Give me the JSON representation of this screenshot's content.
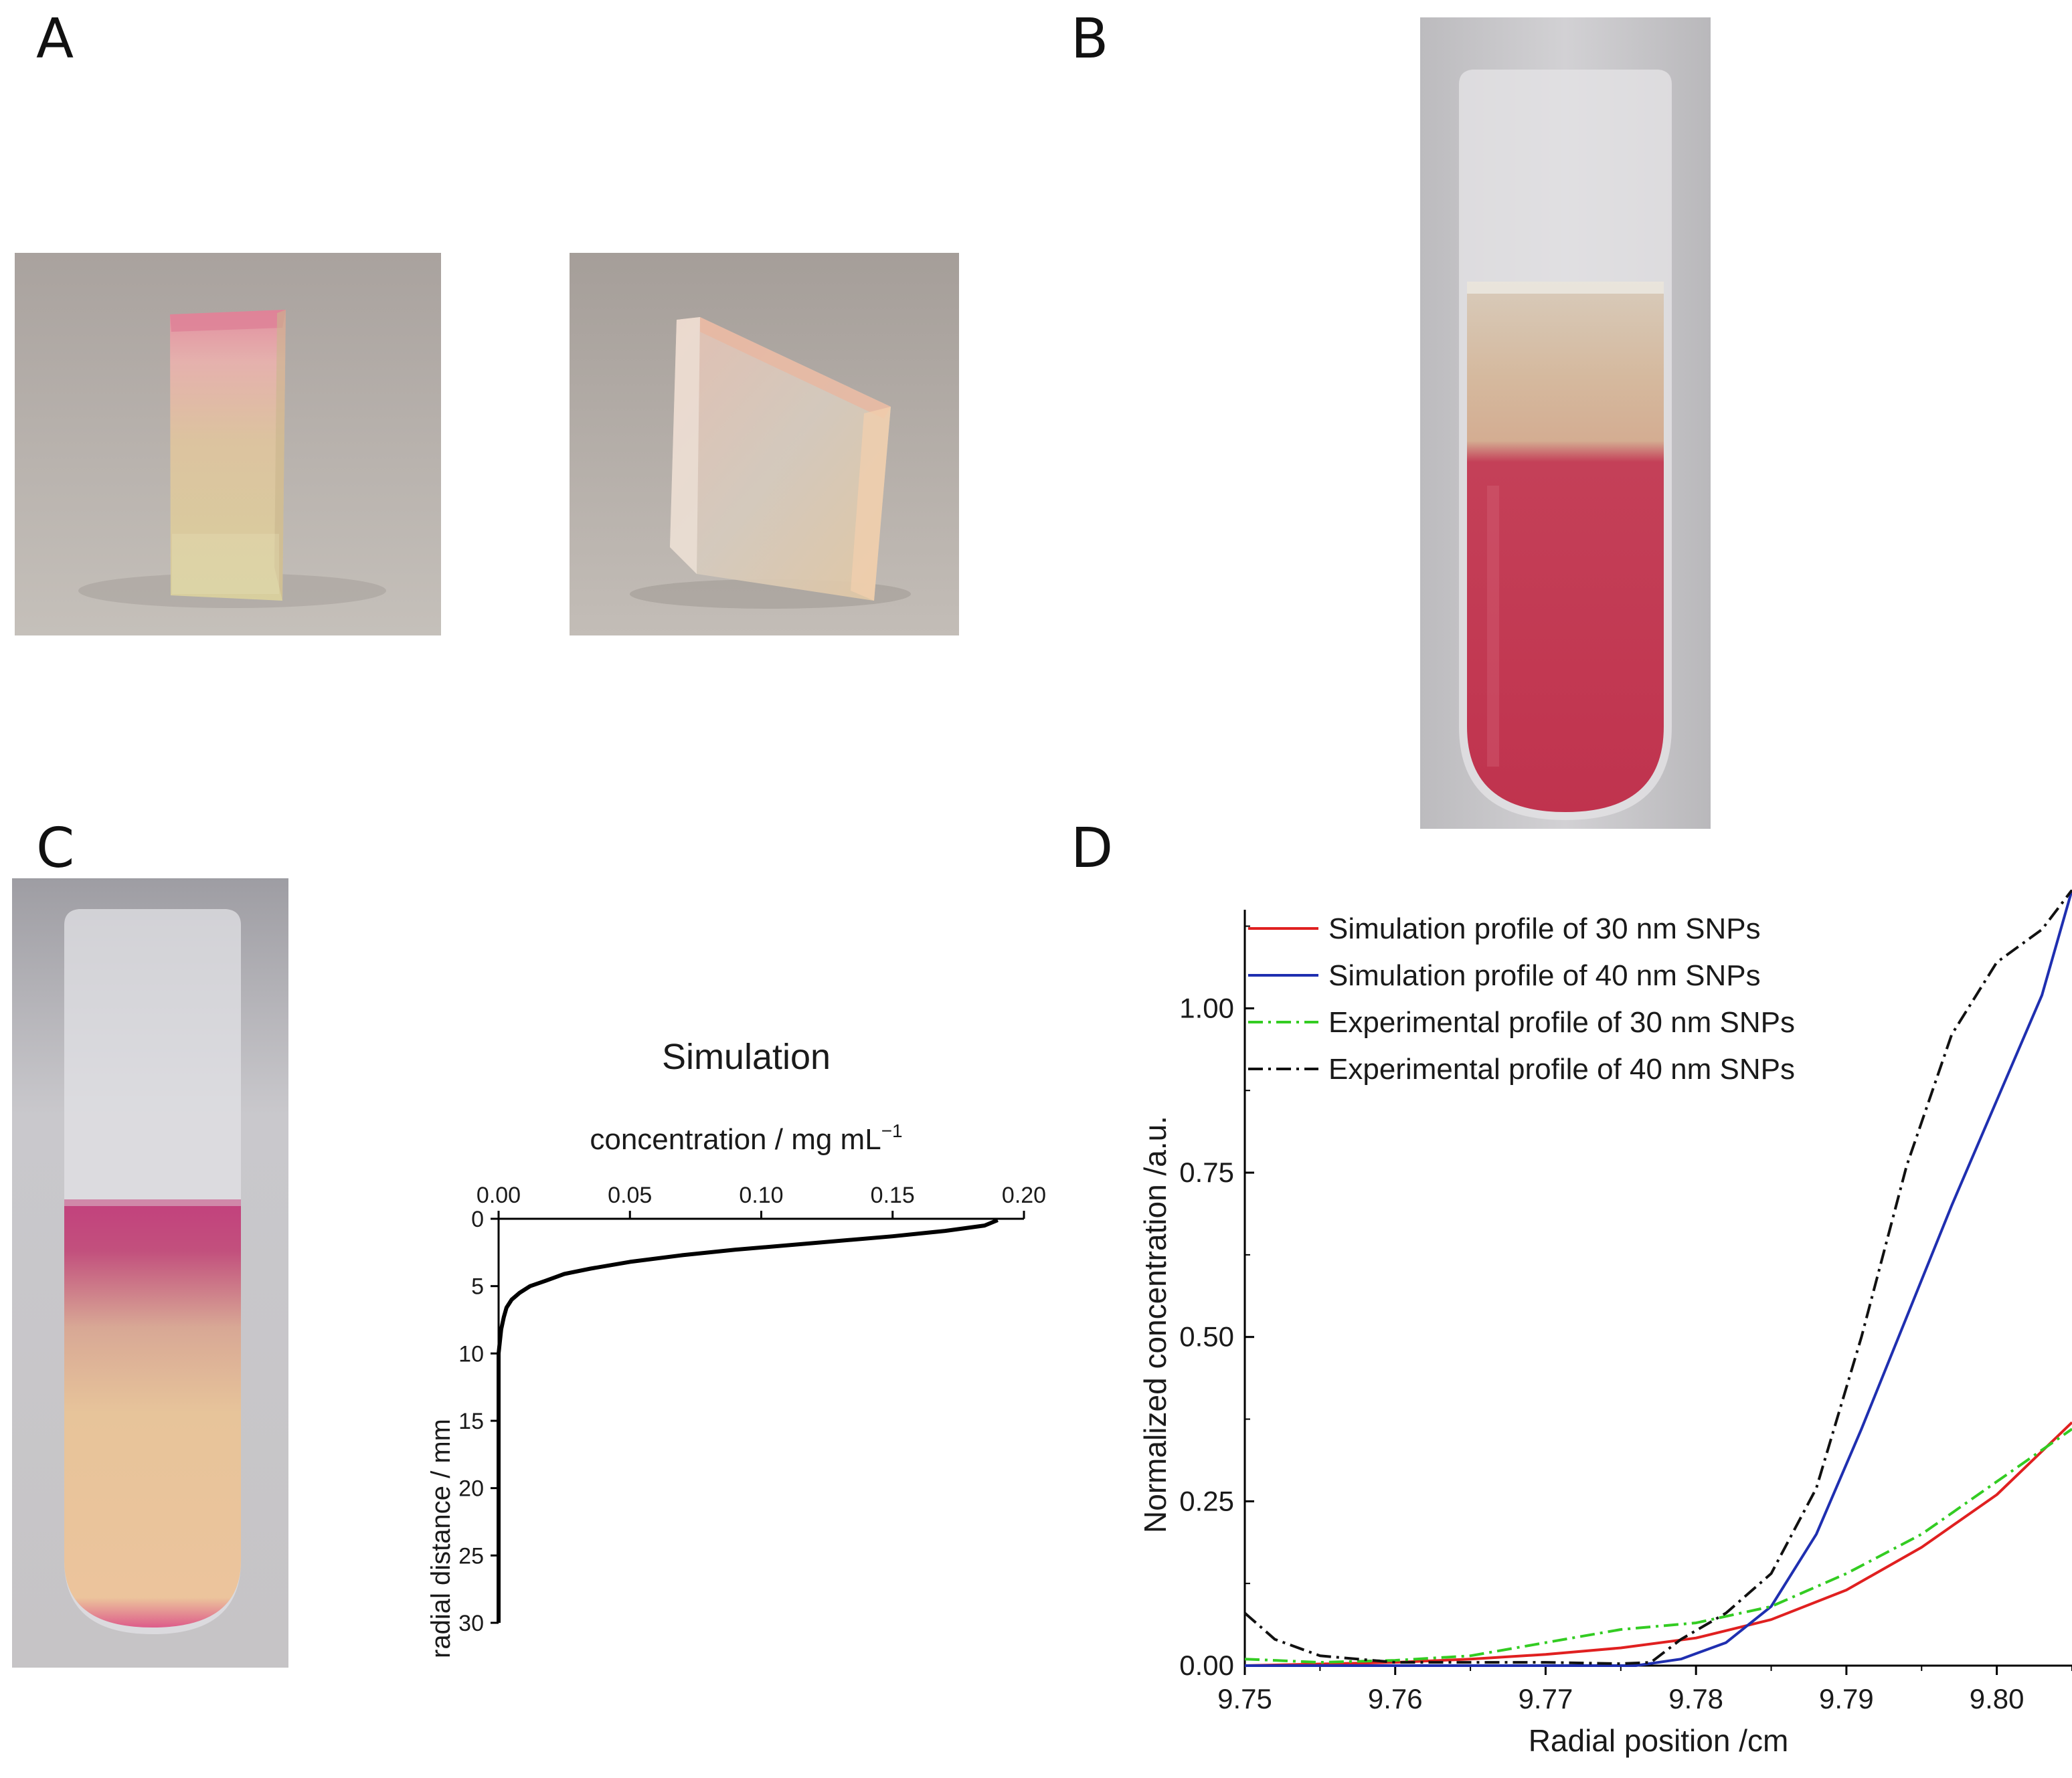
{
  "panels": {
    "a": {
      "letter": "A"
    },
    "b": {
      "letter": "B"
    },
    "c": {
      "letter": "C"
    },
    "d": {
      "letter": "D"
    }
  },
  "colors": {
    "pink": "#c8394f",
    "magenta": "#c23a78",
    "sim30": "#e02020",
    "sim40": "#1f2fb0",
    "exp30": "#33cc22",
    "exp40": "#111111"
  },
  "chart_data": [
    {
      "id": "simulation",
      "type": "line",
      "title": "Simulation",
      "xlabel": "concentration / mg mL",
      "xlabel_sup": "−1",
      "ylabel": "radial distance / mm",
      "xlim": [
        0,
        0.2
      ],
      "ylim": [
        0,
        30
      ],
      "y_inverted": true,
      "x_axis_position": "top",
      "xticks": [
        "0.00",
        "0.05",
        "0.10",
        "0.15",
        "0.20"
      ],
      "yticks": [
        "0",
        "5",
        "10",
        "15",
        "20",
        "25",
        "30"
      ],
      "series": [
        {
          "name": "simulation",
          "x": [
            0.19,
            0.185,
            0.17,
            0.15,
            0.12,
            0.09,
            0.07,
            0.05,
            0.035,
            0.025,
            0.018,
            0.012,
            0.008,
            0.005,
            0.003,
            0.002,
            0.001,
            0.0,
            0.0
          ],
          "y": [
            0.1,
            0.5,
            0.9,
            1.3,
            1.8,
            2.3,
            2.7,
            3.2,
            3.7,
            4.1,
            4.6,
            5.0,
            5.5,
            6.0,
            6.6,
            7.3,
            8.2,
            10.0,
            30.0
          ]
        }
      ]
    },
    {
      "id": "profiles",
      "type": "line",
      "xlabel": "Radial position /cm",
      "ylabel": "Normalized concentration /a.u.",
      "xlim": [
        9.75,
        9.805
      ],
      "ylim": [
        0,
        1.15
      ],
      "xticks": [
        "9.75",
        "9.76",
        "9.77",
        "9.78",
        "9.79",
        "9.80"
      ],
      "yticks": [
        "0.00",
        "0.25",
        "0.50",
        "0.75",
        "1.00"
      ],
      "legend_position": "top-left",
      "series": [
        {
          "name": "Simulation profile of 30 nm SNPs",
          "style": "solid",
          "x": [
            9.75,
            9.76,
            9.765,
            9.77,
            9.775,
            9.78,
            9.785,
            9.79,
            9.795,
            9.8,
            9.805
          ],
          "y": [
            0.0,
            0.005,
            0.01,
            0.017,
            0.027,
            0.042,
            0.07,
            0.115,
            0.18,
            0.26,
            0.37
          ]
        },
        {
          "name": "Simulation profile of 40 nm SNPs",
          "style": "solid",
          "x": [
            9.75,
            9.776,
            9.779,
            9.782,
            9.785,
            9.788,
            9.791,
            9.794,
            9.797,
            9.8,
            9.803,
            9.805
          ],
          "y": [
            0.0,
            0.0,
            0.01,
            0.035,
            0.09,
            0.2,
            0.36,
            0.53,
            0.7,
            0.86,
            1.02,
            1.18
          ]
        },
        {
          "name": "Experimental profile of 30 nm SNPs",
          "style": "dash-dot",
          "x": [
            9.75,
            9.755,
            9.76,
            9.765,
            9.77,
            9.775,
            9.78,
            9.785,
            9.79,
            9.795,
            9.8,
            9.805
          ],
          "y": [
            0.01,
            0.005,
            0.008,
            0.015,
            0.035,
            0.055,
            0.065,
            0.09,
            0.14,
            0.2,
            0.28,
            0.36
          ]
        },
        {
          "name": "Experimental profile of 40 nm SNPs",
          "style": "dash-dot",
          "x": [
            9.75,
            9.752,
            9.755,
            9.76,
            9.77,
            9.775,
            9.777,
            9.779,
            9.782,
            9.785,
            9.788,
            9.791,
            9.794,
            9.797,
            9.8,
            9.803,
            9.805
          ],
          "y": [
            0.08,
            0.04,
            0.015,
            0.005,
            0.005,
            0.003,
            0.005,
            0.04,
            0.08,
            0.14,
            0.27,
            0.5,
            0.76,
            0.96,
            1.07,
            1.12,
            1.18
          ]
        }
      ]
    }
  ]
}
